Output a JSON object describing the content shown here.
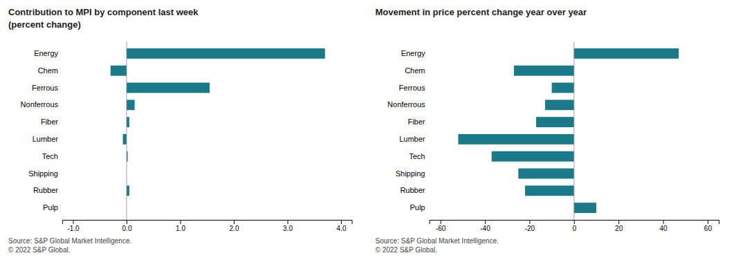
{
  "chart_data": [
    {
      "type": "bar",
      "orientation": "horizontal",
      "title": "Contribution  to MPI by component last week",
      "subtitle": "(percent change)",
      "categories": [
        "Energy",
        "Chem",
        "Ferrous",
        "Nonferrous",
        "Fiber",
        "Lumber",
        "Tech",
        "Shipping",
        "Rubber",
        "Pulp"
      ],
      "values": [
        3.7,
        -0.3,
        1.55,
        0.15,
        0.05,
        -0.07,
        0.02,
        0.0,
        0.05,
        0.0
      ],
      "color": "#1b7a8a",
      "xlim": [
        -1.2,
        4.2
      ],
      "xticks": [
        {
          "value": -1.0,
          "label": "-1.0"
        },
        {
          "value": 0.0,
          "label": "0.0"
        },
        {
          "value": 1.0,
          "label": "1.0"
        },
        {
          "value": 2.0,
          "label": "2.0"
        },
        {
          "value": 3.0,
          "label": "3.0"
        },
        {
          "value": 4.0,
          "label": "4.0"
        }
      ],
      "grid": false,
      "annotations": [
        "Source: S&P Global Market Intelligence.\n© 2022 S&P Global."
      ]
    },
    {
      "type": "bar",
      "orientation": "horizontal",
      "title": "Movement in price percent change year over year",
      "categories": [
        "Energy",
        "Chem",
        "Ferrous",
        "Nonferrous",
        "Fiber",
        "Lumber",
        "Tech",
        "Shipping",
        "Rubber",
        "Pulp"
      ],
      "values": [
        47,
        -27,
        -10,
        -13,
        -17,
        -52,
        -37,
        -25,
        -22,
        10
      ],
      "color": "#1b7a8a",
      "xlim": [
        -65,
        65
      ],
      "xticks": [
        -60,
        -40,
        -20,
        0,
        20,
        40,
        60
      ],
      "grid": false,
      "annotations": [
        "Source: S&P Global Market Intelligence.\n© 2022 S&P Global."
      ]
    }
  ]
}
